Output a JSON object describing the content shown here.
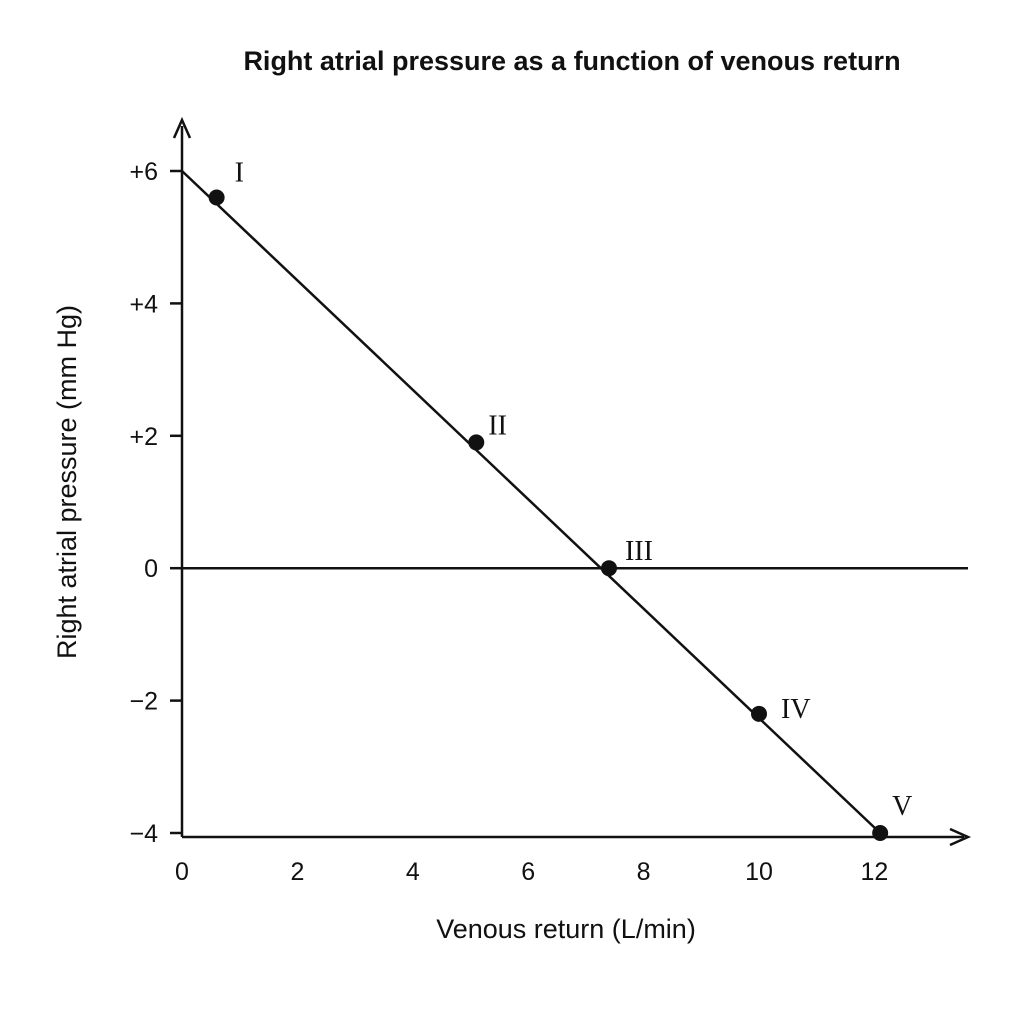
{
  "chart_data": {
    "type": "line",
    "title": "Right atrial pressure as a function of venous return",
    "xlabel": "Venous return (L/min)",
    "ylabel": "Right atrial pressure (mm Hg)",
    "xlim": [
      0,
      13.5
    ],
    "ylim": [
      -4,
      6.6
    ],
    "x_ticks": [
      {
        "value": 0,
        "label": "0"
      },
      {
        "value": 2,
        "label": "2"
      },
      {
        "value": 4,
        "label": "4"
      },
      {
        "value": 6,
        "label": "6"
      },
      {
        "value": 8,
        "label": "8"
      },
      {
        "value": 10,
        "label": "10"
      },
      {
        "value": 12,
        "label": "12"
      }
    ],
    "y_ticks": [
      {
        "value": 6,
        "label": "+6"
      },
      {
        "value": 4,
        "label": "+4"
      },
      {
        "value": 2,
        "label": "+2"
      },
      {
        "value": 0,
        "label": "0"
      },
      {
        "value": -2,
        "label": "−2"
      },
      {
        "value": -4,
        "label": "−4"
      }
    ],
    "line": {
      "x": [
        0,
        12.1
      ],
      "y": [
        6,
        -4
      ]
    },
    "points": [
      {
        "label": "I",
        "x": 0.6,
        "y": 5.6
      },
      {
        "label": "II",
        "x": 5.1,
        "y": 1.9
      },
      {
        "label": "III",
        "x": 7.4,
        "y": 0
      },
      {
        "label": "IV",
        "x": 10.0,
        "y": -2.2
      },
      {
        "label": "V",
        "x": 12.1,
        "y": -4.0
      }
    ],
    "zero_line": true,
    "grid": false,
    "colors": {
      "ink": "#111111",
      "background": "#ffffff"
    }
  }
}
